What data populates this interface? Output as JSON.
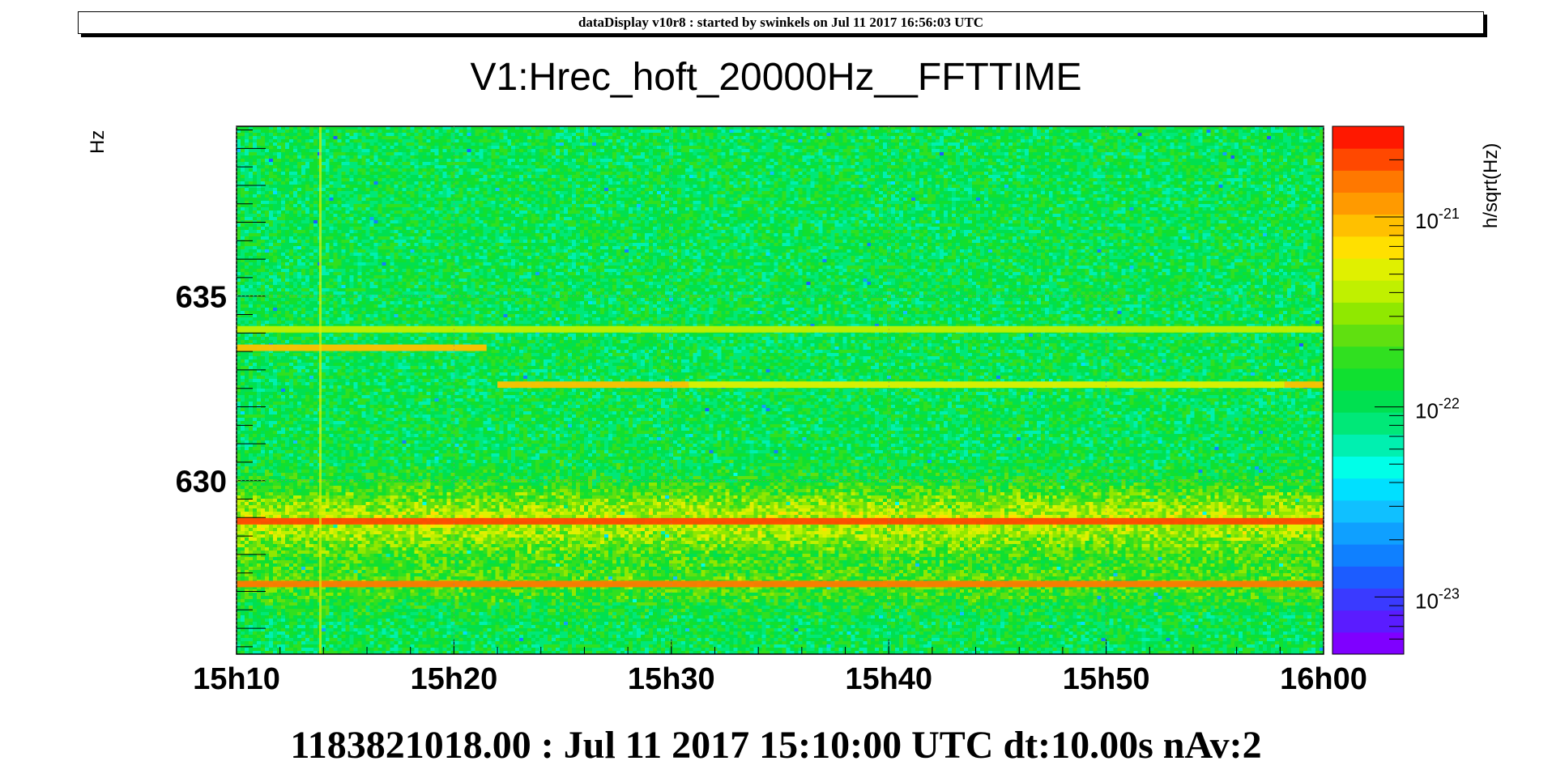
{
  "header": {
    "banner": "dataDisplay v10r8 : started by swinkels on Jul 11 2017 16:56:03 UTC"
  },
  "footer": {
    "info": "1183821018.00 : Jul 11 2017 15:10:00 UTC dt:10.00s nAv:2"
  },
  "chart_data": {
    "type": "heatmap",
    "title": "V1:Hrec_hoft_20000Hz__FFTTIME",
    "ylabel": "Hz",
    "zlabel": "h/sqrt(Hz)",
    "x_tick_labels": [
      "15h10",
      "15h20",
      "15h30",
      "15h40",
      "15h50",
      "16h00"
    ],
    "x_ticks_minutes": [
      0,
      10,
      20,
      30,
      40,
      50
    ],
    "xlim_minutes": [
      0,
      50
    ],
    "y_tick_labels": [
      "630",
      "635"
    ],
    "y_ticks": [
      630,
      635
    ],
    "ylim": [
      625.3,
      639.6
    ],
    "z_log_scale": true,
    "zlim": [
      5e-24,
      3e-21
    ],
    "z_tick_labels": [
      {
        "base": "10",
        "exp": "-23",
        "value": 1e-23
      },
      {
        "base": "10",
        "exp": "-22",
        "value": 1e-22
      },
      {
        "base": "10",
        "exp": "-21",
        "value": 1e-21
      }
    ],
    "palette": [
      "#7f00ff",
      "#5a1cff",
      "#3a3aff",
      "#1c5cff",
      "#0f80ff",
      "#0fa0ff",
      "#10c0ff",
      "#00e0ff",
      "#00ffe8",
      "#00f0b0",
      "#00e878",
      "#00e050",
      "#10e030",
      "#30e020",
      "#60e010",
      "#90e800",
      "#c0f000",
      "#e0f000",
      "#ffe000",
      "#ffc000",
      "#ff9a00",
      "#ff7800",
      "#ff4800",
      "#ff1800"
    ],
    "features": [
      {
        "freq": 633.6,
        "t_start": 0,
        "t_end": 11.5,
        "level": 1e-21
      },
      {
        "freq": 632.6,
        "t_start": 12.0,
        "t_end": 20.8,
        "level": 1e-21
      },
      {
        "freq": 632.6,
        "t_start": 20.8,
        "t_end": 48.2,
        "level": 5e-22
      },
      {
        "freq": 632.6,
        "t_start": 48.2,
        "t_end": 50,
        "level": 1e-21
      },
      {
        "freq": 634.1,
        "t_start": 0,
        "t_end": 50,
        "level": 4e-22
      },
      {
        "freq": 628.9,
        "t_start": 0,
        "t_end": 50,
        "level": 2e-21
      },
      {
        "freq": 627.2,
        "t_start": 0,
        "t_end": 50,
        "level": 1.5e-21
      }
    ]
  }
}
